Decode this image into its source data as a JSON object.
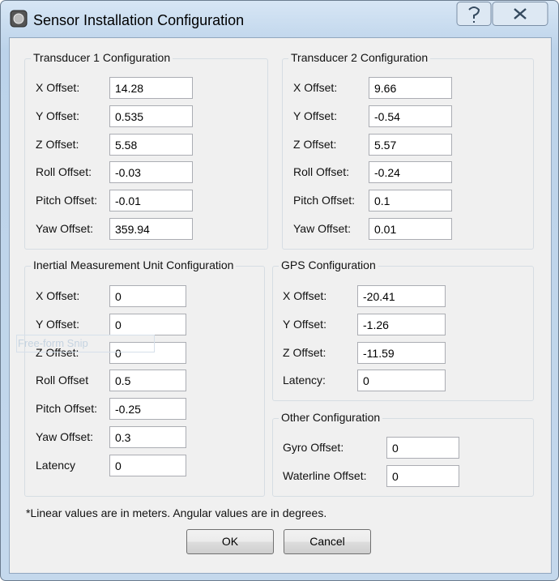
{
  "window": {
    "title": "Sensor Installation Configuration"
  },
  "groups": [
    {
      "title": "Transducer 1 Configuration",
      "fields": [
        {
          "label": "X Offset:",
          "value": "14.28"
        },
        {
          "label": "Y Offset:",
          "value": "0.535"
        },
        {
          "label": "Z Offset:",
          "value": "5.58"
        },
        {
          "label": "Roll Offset:",
          "value": "-0.03"
        },
        {
          "label": "Pitch Offset:",
          "value": "-0.01"
        },
        {
          "label": "Yaw Offset:",
          "value": "359.94"
        }
      ]
    },
    {
      "title": "Transducer 2 Configuration",
      "fields": [
        {
          "label": "X Offset:",
          "value": "9.66"
        },
        {
          "label": "Y Offset:",
          "value": "-0.54"
        },
        {
          "label": "Z Offset:",
          "value": "5.57"
        },
        {
          "label": "Roll Offset:",
          "value": "-0.24"
        },
        {
          "label": "Pitch Offset:",
          "value": "0.1"
        },
        {
          "label": "Yaw Offset:",
          "value": "0.01"
        }
      ]
    },
    {
      "title": "Inertial Measurement Unit Configuration",
      "fields": [
        {
          "label": "X Offset:",
          "value": "0"
        },
        {
          "label": "Y Offset:",
          "value": "0"
        },
        {
          "label": "Z Offset:",
          "value": "0"
        },
        {
          "label": "Roll Offset",
          "value": "0.5"
        },
        {
          "label": "Pitch Offset:",
          "value": "-0.25"
        },
        {
          "label": "Yaw Offset:",
          "value": "0.3"
        },
        {
          "label": "Latency",
          "value": "0"
        }
      ]
    },
    {
      "title": "GPS Configuration",
      "fields": [
        {
          "label": "X Offset:",
          "value": "-20.41"
        },
        {
          "label": "Y Offset:",
          "value": "-1.26"
        },
        {
          "label": "Z Offset:",
          "value": "-11.59"
        },
        {
          "label": "Latency:",
          "value": "0"
        }
      ]
    },
    {
      "title": "Other Configuration",
      "fields": [
        {
          "label": "Gyro Offset:",
          "value": "0"
        },
        {
          "label": "Waterline Offset:",
          "value": "0"
        }
      ]
    }
  ],
  "overlay": "Free-form Snip",
  "note": "*Linear values are in meters.  Angular values are in degrees.",
  "buttons": [
    "OK",
    "Cancel"
  ]
}
